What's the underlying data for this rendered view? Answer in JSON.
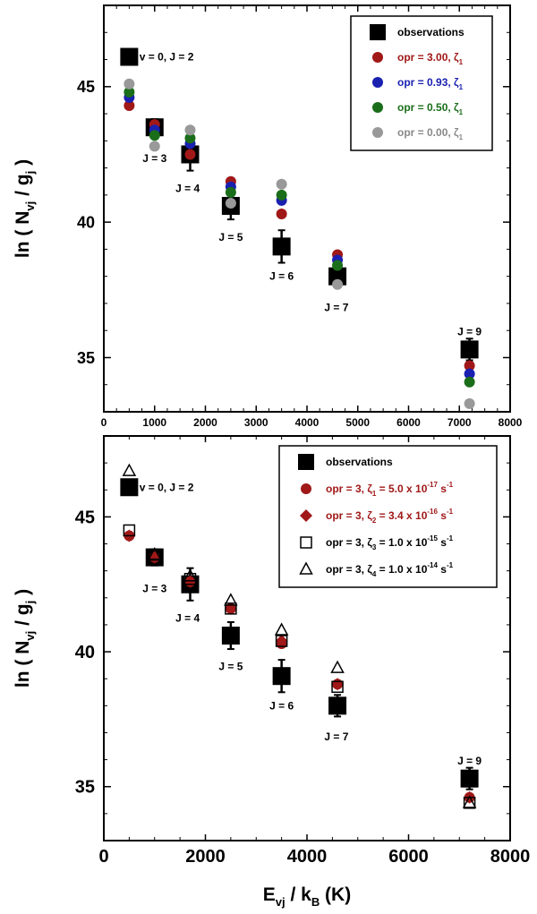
{
  "chart_data": [
    {
      "type": "scatter",
      "panel": "top",
      "xlim": [
        0,
        8000
      ],
      "ylim": [
        33,
        48
      ],
      "x_ticks": [
        "0",
        "1000",
        "2000",
        "3000",
        "4000",
        "5000",
        "6000",
        "7000",
        "8000"
      ],
      "y_ticks": [
        "35",
        "40",
        "45"
      ],
      "ylabel_main": "ln ( N",
      "ylabel_sub1": "vj",
      "ylabel_mid": " / g",
      "ylabel_sub2": "j",
      "ylabel_end": " )",
      "legend_position": "top-right",
      "legend": [
        {
          "text": "observations",
          "sub": "",
          "color": "#000000",
          "marker": "square"
        },
        {
          "text": "opr = 3.00, ζ",
          "sub": "1",
          "color": "#a01818",
          "marker": "circle"
        },
        {
          "text": "opr = 0.93, ζ",
          "sub": "1",
          "color": "#1a20b0",
          "marker": "circle"
        },
        {
          "text": "opr = 0.50, ζ",
          "sub": "1",
          "color": "#1a6e1a",
          "marker": "circle"
        },
        {
          "text": "opr = 0.00, ζ",
          "sub": "1",
          "color": "#999999",
          "marker": "circle"
        }
      ],
      "annotations": [
        {
          "text": "v = 0, J = 2",
          "x": 700,
          "y": 46.1
        },
        {
          "text": "J = 3",
          "x": 1000,
          "y": 42.35
        },
        {
          "text": "J = 4",
          "x": 1650,
          "y": 41.25
        },
        {
          "text": "J = 5",
          "x": 2500,
          "y": 39.45
        },
        {
          "text": "J = 6",
          "x": 3500,
          "y": 38.0
        },
        {
          "text": "J = 7",
          "x": 4580,
          "y": 36.85
        },
        {
          "text": "J = 9",
          "x": 7200,
          "y": 35.95
        }
      ],
      "obs_marker": {
        "x": 500,
        "y": 46.1
      },
      "series": [
        {
          "name": "observations",
          "color": "#000000",
          "marker": "square",
          "errorbar": true,
          "points": [
            [
              1000,
              43.5,
              0.3
            ],
            [
              1700,
              42.5,
              0.6
            ],
            [
              2500,
              40.6,
              0.5
            ],
            [
              3500,
              39.1,
              0.6
            ],
            [
              4600,
              38.0,
              0.4
            ],
            [
              7200,
              35.3,
              0.4
            ]
          ]
        },
        {
          "name": "opr = 3.00",
          "color": "#a01818",
          "marker": "circle",
          "points": [
            [
              500,
              44.3
            ],
            [
              1000,
              43.6
            ],
            [
              1700,
              42.5
            ],
            [
              2500,
              41.5
            ],
            [
              3500,
              40.3
            ],
            [
              4600,
              38.8
            ],
            [
              7200,
              34.7
            ]
          ]
        },
        {
          "name": "opr = 0.93",
          "color": "#1a20b0",
          "marker": "circle",
          "points": [
            [
              500,
              44.6
            ],
            [
              1000,
              43.4
            ],
            [
              1700,
              42.9
            ],
            [
              2500,
              41.3
            ],
            [
              3500,
              40.8
            ],
            [
              4600,
              38.6
            ],
            [
              7200,
              34.4
            ]
          ]
        },
        {
          "name": "opr = 0.50",
          "color": "#1a6e1a",
          "marker": "circle",
          "points": [
            [
              500,
              44.8
            ],
            [
              1000,
              43.2
            ],
            [
              1700,
              43.1
            ],
            [
              2500,
              41.1
            ],
            [
              3500,
              41.0
            ],
            [
              4600,
              38.4
            ],
            [
              7200,
              34.1
            ]
          ]
        },
        {
          "name": "opr = 0.00",
          "color": "#999999",
          "marker": "circle",
          "points": [
            [
              500,
              45.1
            ],
            [
              1000,
              42.8
            ],
            [
              1700,
              43.4
            ],
            [
              2500,
              40.7
            ],
            [
              3500,
              41.4
            ],
            [
              4600,
              37.7
            ],
            [
              7200,
              33.3
            ]
          ]
        }
      ]
    },
    {
      "type": "scatter",
      "panel": "bottom",
      "xlim": [
        0,
        8000
      ],
      "ylim": [
        33,
        48
      ],
      "x_ticks": [
        "0",
        "2000",
        "4000",
        "6000",
        "8000"
      ],
      "y_ticks": [
        "35",
        "40",
        "45"
      ],
      "ylabel_main": "ln ( N",
      "ylabel_sub1": "vj",
      "ylabel_mid": " / g",
      "ylabel_sub2": "j",
      "ylabel_end": " )",
      "xlabel_main": "E",
      "xlabel_sub1": "vj",
      "xlabel_mid": " / k",
      "xlabel_sub2": "B",
      "xlabel_end": " (K)",
      "legend_position": "top-right",
      "legend": [
        {
          "text": "observations",
          "sub": "",
          "sup": "",
          "tail": "",
          "color": "#000000",
          "marker": "square"
        },
        {
          "text": "opr = 3, ζ",
          "sub": "1",
          "mid": " = 5.0 x 10",
          "sup": "-17",
          "tail": " s",
          "sup2": "-1",
          "color": "#a01818",
          "marker": "circle"
        },
        {
          "text": "opr = 3, ζ",
          "sub": "2",
          "mid": " = 3.4 x 10",
          "sup": "-16",
          "tail": " s",
          "sup2": "-1",
          "color": "#a01818",
          "marker": "diamond"
        },
        {
          "text": "opr = 3, ζ",
          "sub": "3",
          "mid": " = 1.0 x 10",
          "sup": "-15",
          "tail": " s",
          "sup2": "-1",
          "color": "#000000",
          "marker": "open-square"
        },
        {
          "text": "opr = 3, ζ",
          "sub": "4",
          "mid": " = 1.0 x 10",
          "sup": "-14",
          "tail": " s",
          "sup2": "-1",
          "color": "#000000",
          "marker": "open-triangle"
        }
      ],
      "annotations": [
        {
          "text": "v = 0, J = 2",
          "x": 700,
          "y": 46.1
        },
        {
          "text": "J = 3",
          "x": 1000,
          "y": 42.35
        },
        {
          "text": "J = 4",
          "x": 1650,
          "y": 41.25
        },
        {
          "text": "J = 5",
          "x": 2500,
          "y": 39.45
        },
        {
          "text": "J = 6",
          "x": 3500,
          "y": 38.0
        },
        {
          "text": "J = 7",
          "x": 4580,
          "y": 36.85
        },
        {
          "text": "J = 9",
          "x": 7200,
          "y": 35.95
        }
      ],
      "obs_marker": {
        "x": 500,
        "y": 46.1
      },
      "series": [
        {
          "name": "observations",
          "color": "#000000",
          "marker": "square",
          "errorbar": true,
          "points": [
            [
              1000,
              43.5,
              0.3
            ],
            [
              1700,
              42.5,
              0.6
            ],
            [
              2500,
              40.6,
              0.5
            ],
            [
              3500,
              39.1,
              0.6
            ],
            [
              4600,
              38.0,
              0.4
            ],
            [
              7200,
              35.3,
              0.4
            ]
          ]
        },
        {
          "name": "zeta1",
          "color": "#a01818",
          "marker": "circle",
          "points": [
            [
              500,
              44.3
            ],
            [
              1000,
              43.5
            ],
            [
              1700,
              42.6
            ],
            [
              2500,
              41.6
            ],
            [
              3500,
              40.3
            ],
            [
              4600,
              38.8
            ],
            [
              7200,
              34.6
            ]
          ]
        },
        {
          "name": "zeta2",
          "color": "#a01818",
          "marker": "diamond",
          "points": [
            [
              500,
              44.3
            ],
            [
              1000,
              43.5
            ],
            [
              1700,
              42.6
            ],
            [
              2500,
              41.6
            ],
            [
              3500,
              40.4
            ],
            [
              4600,
              38.8
            ],
            [
              7200,
              34.6
            ]
          ]
        },
        {
          "name": "zeta3",
          "color": "#000000",
          "marker": "open-square",
          "points": [
            [
              500,
              44.5
            ],
            [
              1000,
              43.6
            ],
            [
              1700,
              42.7
            ],
            [
              2500,
              41.6
            ],
            [
              3500,
              40.4
            ],
            [
              4600,
              38.7
            ],
            [
              7200,
              34.4
            ]
          ]
        },
        {
          "name": "zeta4",
          "color": "#000000",
          "marker": "open-triangle",
          "points": [
            [
              500,
              46.7
            ],
            [
              1000,
              43.6
            ],
            [
              1700,
              42.8
            ],
            [
              2500,
              41.9
            ],
            [
              3500,
              40.8
            ],
            [
              4600,
              39.4
            ],
            [
              7200,
              34.4
            ]
          ]
        }
      ]
    }
  ]
}
